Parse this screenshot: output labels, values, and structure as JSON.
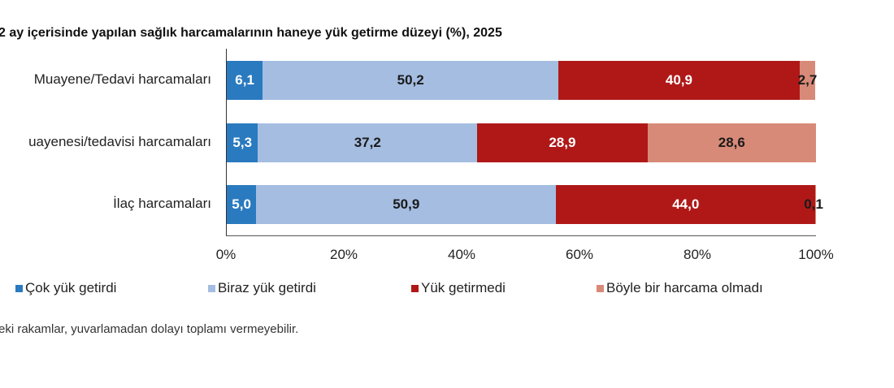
{
  "title": "2 ay içerisinde yapılan sağlık harcamalarının haneye yük getirme düzeyi (%), 2025",
  "footnote": "eki rakamlar, yuvarlamadan dolayı toplamı vermeyebilir.",
  "colors": {
    "cok_yuk": "#2a7abf",
    "biraz_yuk": "#a4bde1",
    "yuk_getirmedi": "#b01818",
    "boyle_bir_harcama_olmadi": "#d88a78"
  },
  "chart_data": {
    "type": "bar",
    "orientation": "horizontal",
    "stacked": true,
    "title": "2 ay içerisinde yapılan sağlık harcamalarının haneye yük getirme düzeyi (%), 2025",
    "categories": [
      "Muayene/Tedavi harcamaları",
      "uayenesi/tedavisi harcamaları",
      "İlaç harcamaları"
    ],
    "series": [
      {
        "name": "Çok yük getirdi",
        "color": "#2a7abf",
        "values": [
          6.1,
          5.3,
          5.0
        ],
        "labels": [
          "6,1",
          "5,3",
          "5,0"
        ],
        "label_color": "#ffffff"
      },
      {
        "name": "Biraz yük getirdi",
        "color": "#a4bde1",
        "values": [
          50.2,
          37.2,
          50.9
        ],
        "labels": [
          "50,2",
          "37,2",
          "50,9"
        ],
        "label_color": "#1a1a1a"
      },
      {
        "name": "Yük getirmedi",
        "color": "#b01818",
        "values": [
          40.9,
          28.9,
          44.0
        ],
        "labels": [
          "40,9",
          "28,9",
          "44,0"
        ],
        "label_color": "#ffffff"
      },
      {
        "name": "Böyle bir harcama olmadı",
        "color": "#d88a78",
        "values": [
          2.7,
          28.6,
          0.1
        ],
        "labels": [
          "2,7",
          "28,6",
          "0,1"
        ],
        "label_color": "#1a1a1a"
      }
    ],
    "xlabel": "",
    "ylabel": "",
    "xlim": [
      0,
      100
    ],
    "x_ticks": [
      "0%",
      "20%",
      "40%",
      "60%",
      "80%",
      "100%"
    ],
    "grid": false,
    "legend_position": "bottom"
  },
  "axis": {
    "ticks": [
      "0%",
      "20%",
      "40%",
      "60%",
      "80%",
      "100%"
    ]
  },
  "legend": [
    {
      "label": "Çok yük getirdi",
      "color": "#2a7abf"
    },
    {
      "label": "Biraz yük getirdi",
      "color": "#a4bde1"
    },
    {
      "label": "Yük getirmedi",
      "color": "#b01818"
    },
    {
      "label": "Böyle bir harcama olmadı",
      "color": "#d88a78"
    }
  ]
}
